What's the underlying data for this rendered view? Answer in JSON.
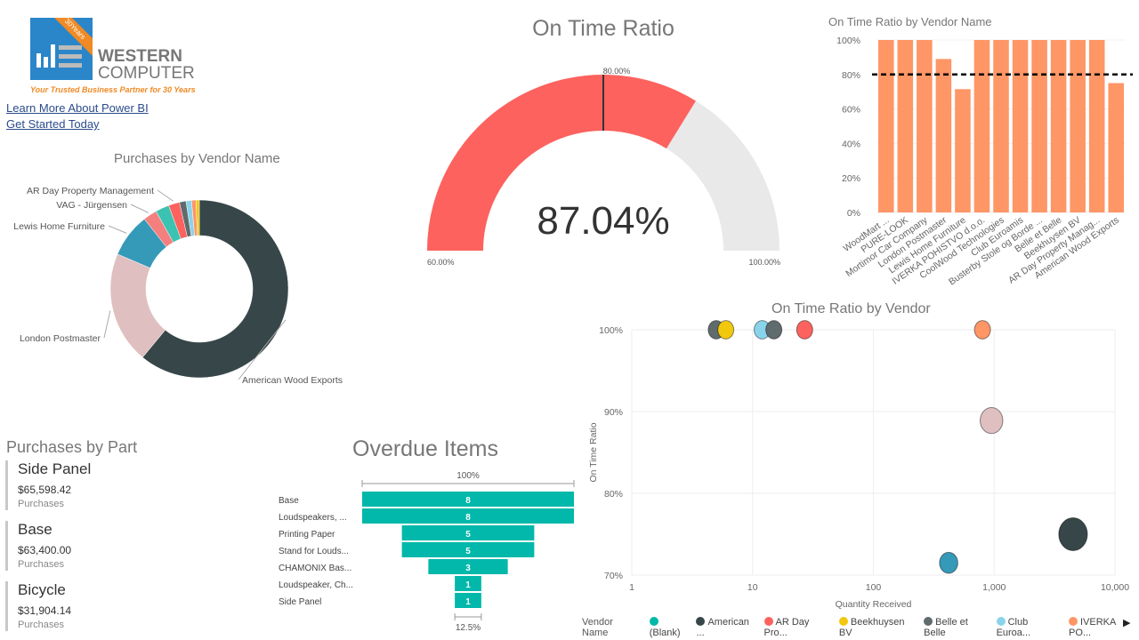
{
  "logo": {
    "line1": "WESTERN",
    "line2": "COMPUTER",
    "tagline": "Your Trusted Business Partner for 30 Years",
    "badge": "30Years"
  },
  "links": [
    "Learn More About Power BI",
    "Get Started Today"
  ],
  "gauge": {
    "title": "On Time Ratio",
    "value": 87.04,
    "value_label": "87.04%",
    "min": 60,
    "max": 100,
    "target": 80,
    "min_label": "60.00%",
    "max_label": "100.00%",
    "target_label": "80.00%",
    "fill": "#fd625e",
    "track": "#e9e9e9"
  },
  "bar_chart": {
    "type": "bar",
    "title": "On Time Ratio by Vendor Name",
    "categories": [
      "WoodMart ...",
      "PURE-LOOK",
      "Mortimor Car Company",
      "London Postmaster",
      "Lewis Home Furniture",
      "IVERKA POHISTVO d.o.o.",
      "CoolWood Technologies",
      "Club Euroamis",
      "Busterby Stole og Borde ...",
      "Belle et Belle",
      "Beekhuysen BV",
      "AR Day Property Manag...",
      "American Wood Exports"
    ],
    "values": [
      100,
      100,
      100,
      89,
      71.5,
      100,
      100,
      100,
      100,
      100,
      100,
      100,
      75
    ],
    "yticks": [
      "0%",
      "20%",
      "40%",
      "60%",
      "80%",
      "100%"
    ],
    "ylim": [
      0,
      100
    ],
    "target_line": 80,
    "color": "#fe9666"
  },
  "donut": {
    "type": "pie",
    "title": "Purchases by Vendor Name",
    "slices": [
      {
        "name": "American Wood Exports",
        "value": 61,
        "color": "#374649",
        "label": true
      },
      {
        "name": "London Postmaster",
        "value": 20.4,
        "color": "#dfbfbf",
        "label": true
      },
      {
        "name": "Lewis Home Furniture",
        "value": 8,
        "color": "#3599b8",
        "label": true
      },
      {
        "name": "VAG - Jürgensen",
        "value": 2.5,
        "color": "#f47f7f",
        "label": true
      },
      {
        "name": "",
        "value": 2.5,
        "color": "#3cc2b1",
        "label": false
      },
      {
        "name": "AR Day Property Management",
        "value": 2,
        "color": "#fd625e",
        "label": true
      },
      {
        "name": "",
        "value": 1.2,
        "color": "#5f6b6d",
        "label": false
      },
      {
        "name": "",
        "value": 1,
        "color": "#8ad4eb",
        "label": false
      },
      {
        "name": "",
        "value": 0.8,
        "color": "#fe9666",
        "label": false
      },
      {
        "name": "",
        "value": 0.6,
        "color": "#f2c80f",
        "label": false
      }
    ]
  },
  "parts": {
    "title": "Purchases by Part",
    "items": [
      {
        "name": "Side Panel",
        "value": "$65,598.42",
        "label": "Purchases"
      },
      {
        "name": "Base",
        "value": "$63,400.00",
        "label": "Purchases"
      },
      {
        "name": "Bicycle",
        "value": "$31,904.14",
        "label": "Purchases"
      }
    ]
  },
  "funnel": {
    "type": "bar",
    "title": "Overdue Items",
    "top_label": "100%",
    "bottom_label": "12.5%",
    "color": "#01b8aa",
    "categories": [
      "Base",
      "Loudspeakers, ...",
      "Printing Paper",
      "Stand for Louds...",
      "CHAMONIX Bas...",
      "Loudspeaker, Ch...",
      "Side Panel"
    ],
    "values": [
      8,
      8,
      5,
      5,
      3,
      1,
      1
    ]
  },
  "chart_data": {
    "type": "scatter",
    "title": "On Time Ratio by Vendor",
    "xlabel": "Quantity Received",
    "ylabel": "On Time Ratio",
    "xscale": "log",
    "xlim": [
      1,
      10000
    ],
    "ylim": [
      70,
      100
    ],
    "xticks": [
      "1",
      "10",
      "100",
      "1,000",
      "10,000"
    ],
    "yticks": [
      "70%",
      "80%",
      "90%",
      "100%"
    ],
    "points": [
      {
        "x": 5,
        "y": 100,
        "size": 1,
        "color": "#5f6b6d"
      },
      {
        "x": 6,
        "y": 100,
        "size": 1,
        "color": "#f2c80f"
      },
      {
        "x": 12,
        "y": 100,
        "size": 1,
        "color": "#8ad4eb"
      },
      {
        "x": 15,
        "y": 100,
        "size": 1,
        "color": "#5f6b6d"
      },
      {
        "x": 27,
        "y": 100,
        "size": 1,
        "color": "#fd625e"
      },
      {
        "x": 800,
        "y": 100,
        "size": 1,
        "color": "#fe9666"
      },
      {
        "x": 950,
        "y": 88.9,
        "size": 2,
        "color": "#dfbfbf"
      },
      {
        "x": 420,
        "y": 71.5,
        "size": 1.3,
        "color": "#3599b8"
      },
      {
        "x": 4500,
        "y": 75,
        "size": 3.2,
        "color": "#374649"
      }
    ]
  },
  "legend": {
    "title": "Vendor Name",
    "items": [
      {
        "label": "(Blank)",
        "color": "#01b8aa"
      },
      {
        "label": "American ...",
        "color": "#374649"
      },
      {
        "label": "AR Day Pro...",
        "color": "#fd625e"
      },
      {
        "label": "Beekhuysen BV",
        "color": "#f2c80f"
      },
      {
        "label": "Belle et Belle",
        "color": "#5f6b6d"
      },
      {
        "label": "Club Euroa...",
        "color": "#8ad4eb"
      },
      {
        "label": "IVERKA PO...",
        "color": "#fe9666"
      }
    ]
  }
}
